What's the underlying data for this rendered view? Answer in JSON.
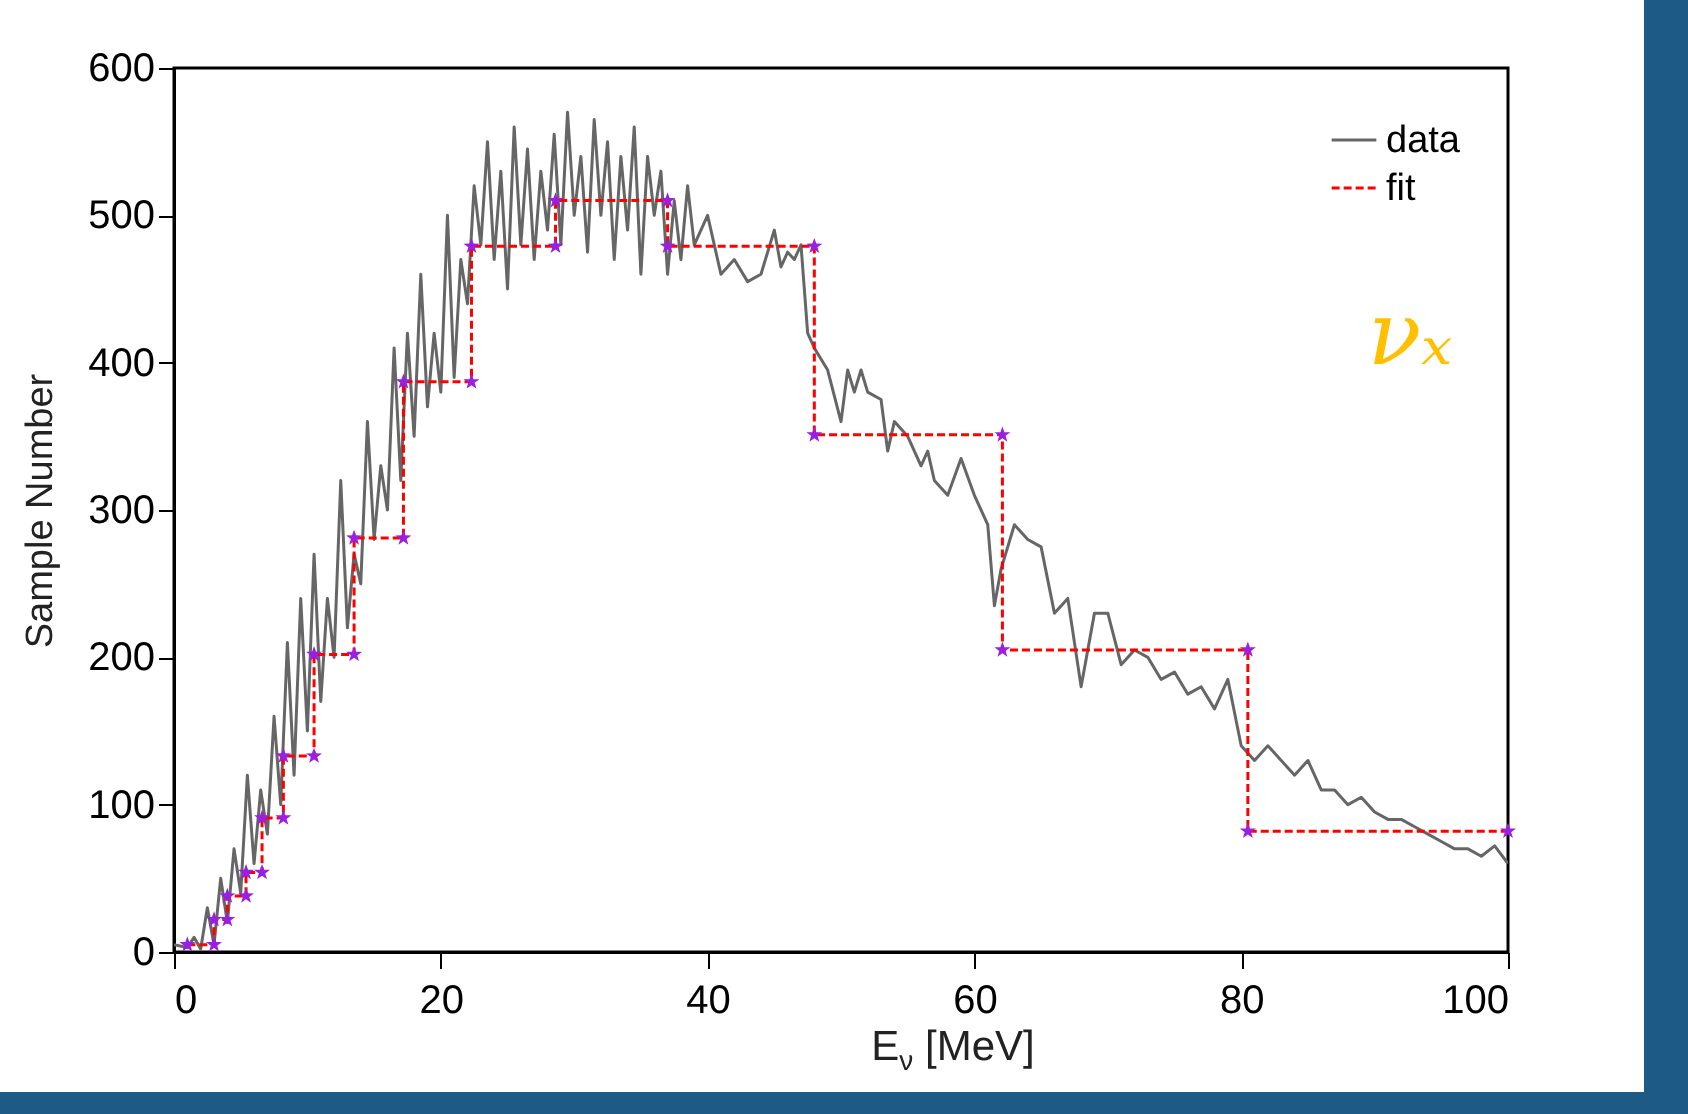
{
  "chart_data": {
    "type": "line",
    "xlabel": "E$_{ν}$ [MeV]",
    "ylabel": "Sample Number",
    "annotations": [
      "νₓ"
    ],
    "xlim": [
      0,
      100
    ],
    "xticks": [
      0,
      20,
      40,
      60,
      80,
      100
    ],
    "ylim": [
      0,
      600
    ],
    "yticks": [
      0,
      100,
      200,
      300,
      400,
      500,
      600
    ],
    "grid": false,
    "legend": "top right",
    "series": [
      {
        "name": "data",
        "color": "#666666",
        "line_style": "solid",
        "marker": "none",
        "x": [
          0,
          1,
          1.5,
          2,
          2.5,
          3,
          3.5,
          4,
          4.5,
          5,
          5.5,
          6,
          6.5,
          7,
          7.5,
          8,
          8.5,
          9,
          9.5,
          10,
          10.5,
          11,
          11.5,
          12,
          12.5,
          13,
          13.5,
          14,
          14.5,
          15,
          15.5,
          16,
          16.5,
          17,
          17.5,
          18,
          18.5,
          19,
          19.5,
          20,
          20.5,
          21,
          21.5,
          22,
          22.5,
          23,
          23.5,
          24,
          24.5,
          25,
          25.5,
          26,
          26.5,
          27,
          27.5,
          28,
          28.5,
          29,
          29.5,
          30,
          30.5,
          31,
          31.5,
          32,
          32.5,
          33,
          33.5,
          34,
          34.5,
          35,
          35.5,
          36,
          36.5,
          37,
          37.5,
          38,
          38.5,
          39,
          40,
          41,
          42,
          43,
          44,
          45,
          45.5,
          46,
          46.5,
          47,
          47.5,
          48,
          49,
          50,
          50.5,
          51,
          51.5,
          52,
          53,
          53.5,
          54,
          55,
          56,
          56.5,
          57,
          58,
          59,
          60,
          61,
          61.5,
          62,
          63,
          64,
          65,
          66,
          67,
          68,
          69,
          70,
          71,
          72,
          73,
          74,
          75,
          76,
          77,
          78,
          79,
          80,
          81,
          82,
          83,
          84,
          85,
          86,
          87,
          88,
          89,
          90,
          91,
          92,
          93,
          94,
          95,
          96,
          97,
          98,
          99,
          100
        ],
        "values": [
          5,
          3,
          10,
          2,
          30,
          5,
          50,
          20,
          70,
          40,
          120,
          60,
          110,
          80,
          160,
          100,
          210,
          120,
          240,
          150,
          270,
          170,
          240,
          200,
          320,
          220,
          270,
          250,
          360,
          280,
          330,
          300,
          410,
          320,
          420,
          350,
          460,
          370,
          420,
          380,
          500,
          390,
          470,
          440,
          520,
          480,
          550,
          470,
          530,
          450,
          560,
          480,
          545,
          470,
          530,
          490,
          555,
          480,
          570,
          500,
          540,
          475,
          565,
          500,
          550,
          470,
          540,
          490,
          560,
          460,
          540,
          500,
          530,
          460,
          510,
          470,
          520,
          480,
          500,
          460,
          470,
          455,
          460,
          490,
          465,
          475,
          470,
          480,
          420,
          410,
          395,
          360,
          395,
          380,
          395,
          380,
          375,
          340,
          360,
          350,
          330,
          340,
          320,
          310,
          335,
          310,
          290,
          235,
          260,
          290,
          280,
          275,
          230,
          240,
          180,
          230,
          230,
          195,
          205,
          200,
          185,
          190,
          175,
          180,
          165,
          185,
          140,
          130,
          140,
          130,
          120,
          130,
          110,
          110,
          100,
          105,
          95,
          90,
          90,
          85,
          80,
          75,
          70,
          70,
          65,
          72,
          60
        ]
      },
      {
        "name": "fit",
        "color": "#ff0000",
        "line_style": "dashed",
        "marker": "star",
        "x": [
          1.0,
          3.0,
          3.0,
          4.0,
          4.0,
          5.4,
          5.4,
          6.6,
          6.6,
          8.2,
          8.2,
          10.5,
          10.5,
          13.5,
          13.5,
          17.2,
          17.2,
          22.3,
          22.3,
          28.6,
          28.6,
          37.0,
          37.0,
          48.0,
          48.0,
          62.1,
          62.1,
          80.5,
          80.5,
          100
        ],
        "values": [
          5,
          5,
          22,
          22,
          38,
          38,
          54,
          54,
          91,
          91,
          133,
          133,
          202,
          202,
          281,
          281,
          387,
          387,
          479,
          479,
          510,
          510,
          479,
          479,
          351,
          351,
          205,
          205,
          82,
          82
        ]
      }
    ]
  }
}
